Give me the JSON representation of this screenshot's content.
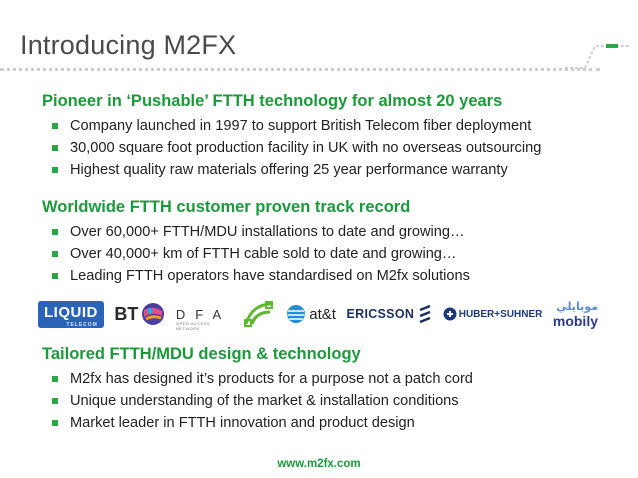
{
  "slide": {
    "title": "Introducing M2FX",
    "footer": "www.m2fx.com"
  },
  "sections": [
    {
      "heading": "Pioneer in ‘Pushable’ FTTH technology for almost 20 years",
      "bullets": [
        "Company launched in 1997 to support British Telecom fiber deployment",
        "30,000 square foot production facility in UK with no overseas outsourcing",
        "Highest quality raw materials offering 25 year performance warranty"
      ]
    },
    {
      "heading": "Worldwide FTTH  customer proven track record",
      "bullets": [
        "Over 60,000+ FTTH/MDU installations to date and growing…",
        "Over 40,000+ km of FTTH cable sold to date and growing…",
        "Leading FTTH operators have standardised on M2fx solutions"
      ]
    },
    {
      "heading": "Tailored FTTH/MDU design & technology",
      "bullets": [
        "M2fx has designed it’s products for a purpose not a patch cord",
        "Unique understanding of the market & installation conditions",
        "Market leader in FTTH innovation and product design"
      ]
    }
  ],
  "logos": {
    "liquid": "LIQUID",
    "liquid_sub": "TELECOM",
    "bt": "BT",
    "dfa": "DFA",
    "dfa_sub": "OPEN ACCESS NETWORK",
    "att": "at&t",
    "ericsson": "ERICSSON",
    "huber": "HUBER+SUHNER",
    "mobily_ar": "موبايلي",
    "mobily": "mobily"
  },
  "colors": {
    "heading": "#1c9a3b",
    "bullet": "#27a844",
    "title": "#4a4a4a"
  }
}
